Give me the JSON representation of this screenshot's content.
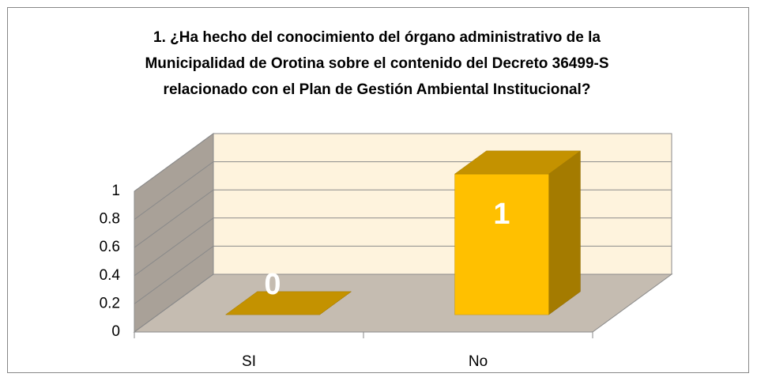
{
  "chart_data": {
    "type": "bar3d",
    "title": [
      "1. ¿Ha hecho del conocimiento del órgano administrativo de la",
      "Municipalidad de Orotina sobre el contenido del Decreto 36499-S",
      "relacionado con el Plan de Gestión Ambiental Institucional?"
    ],
    "categories": [
      "SI",
      "No"
    ],
    "values": [
      0,
      1
    ],
    "color": "#ffc000",
    "ylim": [
      0,
      1
    ],
    "yticks": [
      0,
      0.2,
      0.4,
      0.6,
      0.8,
      1
    ],
    "grid": true
  }
}
